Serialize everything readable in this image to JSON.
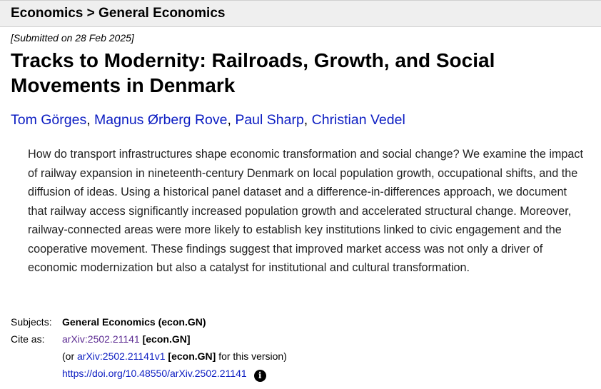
{
  "header": {
    "breadcrumb_category": "Economics",
    "breadcrumb_separator": ">",
    "breadcrumb_subcategory": "General Economics"
  },
  "paper": {
    "dateline": "[Submitted on 28 Feb 2025]",
    "title": "Tracks to Modernity: Railroads, Growth, and Social Movements in Denmark",
    "authors": [
      "Tom Görges",
      "Magnus Ørberg Rove",
      "Paul Sharp",
      "Christian Vedel"
    ],
    "author_separator": ", ",
    "abstract": "How do transport infrastructures shape economic transformation and social change? We examine the impact of railway expansion in nineteenth-century Denmark on local population growth, occupational shifts, and the diffusion of ideas. Using a historical panel dataset and a difference-in-differences approach, we document that railway access significantly increased population growth and accelerated structural change. Moreover, railway-connected areas were more likely to establish key institutions linked to civic engagement and the cooperative movement. These findings suggest that improved market access was not only a driver of economic modernization but also a catalyst for institutional and cultural transformation."
  },
  "metadata": {
    "subjects_label": "Subjects:",
    "subjects_value": "General Economics (econ.GN)",
    "cite_label": "Cite as:",
    "cite_id": "arXiv:2502.21141",
    "cite_category": "[econ.GN]",
    "version_prefix": "(or",
    "version_id": "arXiv:2502.21141v1",
    "version_category": "[econ.GN]",
    "version_suffix": "for this version)",
    "doi_link": "https://doi.org/10.48550/arXiv.2502.21141",
    "info_icon": "info-icon"
  }
}
